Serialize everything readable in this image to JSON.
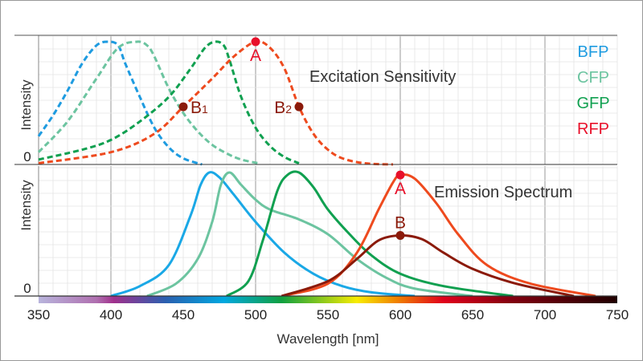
{
  "chart_data": [
    {
      "type": "line",
      "title": "Excitation Sensitivity",
      "ylabel": "Intensity",
      "y_tick": "0",
      "line_style": "dashed",
      "xlim": [
        350,
        750
      ],
      "ylim": [
        0,
        1
      ],
      "grid": true,
      "series": [
        {
          "name": "BFP",
          "color": "#1e9be0",
          "x": [
            350,
            360,
            370,
            380,
            390,
            398,
            405,
            410,
            420,
            430,
            440,
            450,
            463
          ],
          "y": [
            0.23,
            0.4,
            0.6,
            0.82,
            0.97,
            1.0,
            0.97,
            0.82,
            0.55,
            0.3,
            0.14,
            0.05,
            0
          ]
        },
        {
          "name": "CFP",
          "color": "#6cc4a0",
          "x": [
            350,
            370,
            390,
            405,
            418,
            425,
            430,
            440,
            450,
            460,
            470,
            480,
            490,
            502
          ],
          "y": [
            0.1,
            0.35,
            0.7,
            0.95,
            1.0,
            0.97,
            0.88,
            0.62,
            0.42,
            0.27,
            0.16,
            0.09,
            0.04,
            0.01
          ]
        },
        {
          "name": "GFP",
          "color": "#10a050",
          "x": [
            350,
            380,
            400,
            420,
            440,
            455,
            465,
            472,
            478,
            482,
            490,
            500,
            510,
            520,
            530
          ],
          "y": [
            0.04,
            0.12,
            0.2,
            0.35,
            0.55,
            0.78,
            0.95,
            1.0,
            0.97,
            0.85,
            0.55,
            0.3,
            0.15,
            0.06,
            0.01
          ]
        },
        {
          "name": "RFP",
          "color": "#ee4a1e",
          "x": [
            350,
            400,
            430,
            450,
            470,
            485,
            500,
            510,
            520,
            530,
            540,
            550,
            560,
            575,
            595
          ],
          "y": [
            0.01,
            0.1,
            0.25,
            0.47,
            0.7,
            0.88,
            1.0,
            0.95,
            0.78,
            0.47,
            0.25,
            0.12,
            0.05,
            0.01,
            0
          ]
        }
      ],
      "annotations": [
        {
          "label": "A",
          "x": 500,
          "y": 1.0,
          "color": "#e8102a"
        },
        {
          "label": "B",
          "sub": "1",
          "x": 450,
          "y": 0.47,
          "color": "#8b1a0a"
        },
        {
          "label": "B",
          "sub": "2",
          "x": 530,
          "y": 0.47,
          "color": "#8b1a0a"
        }
      ]
    },
    {
      "type": "line",
      "title": "Emission Spectrum",
      "ylabel": "Intensity",
      "y_tick": "0",
      "line_style": "solid",
      "xlabel": "Wavelength [nm]",
      "xlim": [
        350,
        750
      ],
      "ylim": [
        0,
        1
      ],
      "grid": true,
      "x_ticks": [
        "350",
        "400",
        "450",
        "500",
        "550",
        "600",
        "650",
        "700",
        "750"
      ],
      "series": [
        {
          "name": "BFP",
          "color": "#1aa8e6",
          "x": [
            400,
            420,
            440,
            455,
            462,
            468,
            475,
            485,
            500,
            520,
            540,
            560,
            580,
            610
          ],
          "y": [
            0,
            0.08,
            0.25,
            0.65,
            0.9,
            1.0,
            0.96,
            0.82,
            0.6,
            0.35,
            0.18,
            0.08,
            0.03,
            0
          ]
        },
        {
          "name": "CFP",
          "color": "#6cc4a0",
          "x": [
            425,
            445,
            460,
            470,
            476,
            482,
            490,
            500,
            510,
            530,
            550,
            570,
            590,
            610,
            650
          ],
          "y": [
            0,
            0.1,
            0.3,
            0.6,
            0.9,
            1.0,
            0.9,
            0.78,
            0.7,
            0.62,
            0.5,
            0.3,
            0.15,
            0.06,
            0
          ]
        },
        {
          "name": "GFP",
          "color": "#10a050",
          "x": [
            480,
            495,
            505,
            515,
            522,
            530,
            540,
            550,
            565,
            580,
            600,
            630,
            678
          ],
          "y": [
            0,
            0.12,
            0.45,
            0.85,
            0.98,
            1.0,
            0.88,
            0.7,
            0.5,
            0.33,
            0.18,
            0.08,
            0
          ]
        },
        {
          "name": "RFP",
          "color": "#ee4a1e",
          "x": [
            518,
            550,
            570,
            585,
            595,
            600,
            610,
            625,
            640,
            660,
            690,
            735
          ],
          "y": [
            0,
            0.1,
            0.35,
            0.7,
            0.92,
            0.98,
            0.95,
            0.75,
            0.5,
            0.25,
            0.1,
            0
          ]
        },
        {
          "name": "RFP-B",
          "color": "#8b1a0a",
          "x": [
            518,
            550,
            570,
            585,
            600,
            615,
            630,
            650,
            680,
            720
          ],
          "y": [
            0,
            0.12,
            0.3,
            0.45,
            0.49,
            0.46,
            0.35,
            0.22,
            0.1,
            0
          ]
        }
      ],
      "annotations": [
        {
          "label": "A",
          "x": 600,
          "y": 0.98,
          "color": "#e8102a"
        },
        {
          "label": "B",
          "x": 600,
          "y": 0.49,
          "color": "#8b1a0a"
        }
      ]
    }
  ],
  "legend": [
    {
      "label": "BFP",
      "color": "#1e9be0"
    },
    {
      "label": "CFP",
      "color": "#6cc4a0"
    },
    {
      "label": "GFP",
      "color": "#10a050"
    },
    {
      "label": "RFP",
      "color": "#e8102a"
    }
  ],
  "legend_position": "right"
}
